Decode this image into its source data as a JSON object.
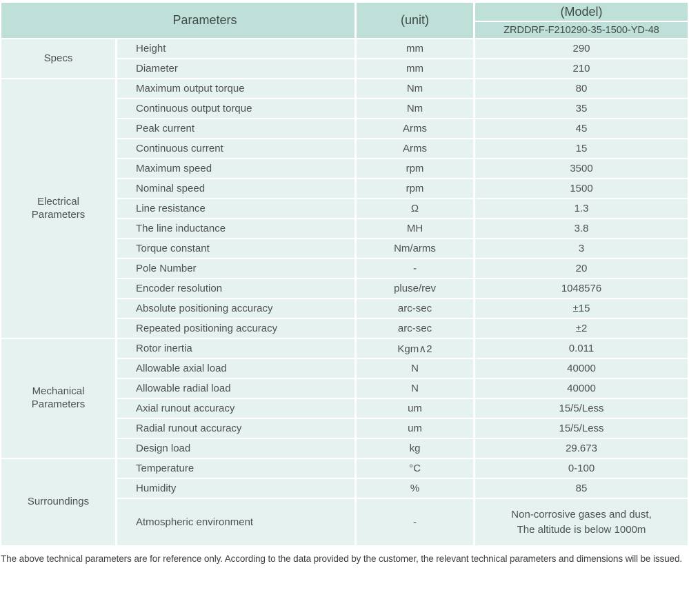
{
  "table": {
    "header": {
      "parameters": "Parameters",
      "unit": "(unit)",
      "model": "(Model)",
      "model_code": "ZRDDRF-F210290-35-1500-YD-48"
    },
    "sections": [
      {
        "label": "Specs",
        "rows": [
          {
            "param": "Height",
            "unit": "mm",
            "value": "290"
          },
          {
            "param": "Diameter",
            "unit": "mm",
            "value": "210"
          }
        ]
      },
      {
        "label": "Electrical Parameters",
        "rows": [
          {
            "param": "Maximum output torque",
            "unit": "Nm",
            "value": "80"
          },
          {
            "param": "Continuous output torque",
            "unit": "Nm",
            "value": "35"
          },
          {
            "param": "Peak current",
            "unit": "Arms",
            "value": "45"
          },
          {
            "param": "Continuous current",
            "unit": "Arms",
            "value": "15"
          },
          {
            "param": "Maximum speed",
            "unit": "rpm",
            "value": "3500"
          },
          {
            "param": "Nominal speed",
            "unit": "rpm",
            "value": "1500"
          },
          {
            "param": "Line resistance",
            "unit": "Ω",
            "value": "1.3"
          },
          {
            "param": "The line inductance",
            "unit": "MH",
            "value": "3.8"
          },
          {
            "param": "Torque constant",
            "unit": "Nm/arms",
            "value": "3"
          },
          {
            "param": "Pole Number",
            "unit": "-",
            "value": "20"
          },
          {
            "param": "Encoder resolution",
            "unit": "pluse/rev",
            "value": "1048576"
          },
          {
            "param": "Absolute positioning accuracy",
            "unit": "arc-sec",
            "value": "±15"
          },
          {
            "param": "Repeated positioning accuracy",
            "unit": "arc-sec",
            "value": "±2"
          }
        ]
      },
      {
        "label": "Mechanical Parameters",
        "rows": [
          {
            "param": "Rotor inertia",
            "unit": "Kgm∧2",
            "value": "0.011"
          },
          {
            "param": "Allowable axial load",
            "unit": "N",
            "value": "40000"
          },
          {
            "param": "Allowable radial load",
            "unit": "N",
            "value": "40000"
          },
          {
            "param": "Axial runout accuracy",
            "unit": "um",
            "value": "15/5/Less"
          },
          {
            "param": "Radial runout accuracy",
            "unit": "um",
            "value": "15/5/Less"
          },
          {
            "param": "Design load",
            "unit": "kg",
            "value": "29.673"
          }
        ]
      },
      {
        "label": "Surroundings",
        "rows": [
          {
            "param": "Temperature",
            "unit": "°C",
            "value": "0-100"
          },
          {
            "param": "Humidity",
            "unit": "%",
            "value": "85"
          },
          {
            "param": "Atmospheric environment",
            "unit": "-",
            "value": "Non-corrosive gases and dust,\nThe altitude is below 1000m",
            "tall": true
          }
        ]
      }
    ]
  },
  "footer_note": "The above technical parameters are for reference only. According to the data provided by the customer, the relevant technical parameters and dimensions will be issued.",
  "colors": {
    "header_bg": "#bfe0d9",
    "header_text": "#404a48",
    "cell_bg": "#e6f2f0",
    "text": "#4d5250",
    "footer_text": "#3f3f3f"
  }
}
